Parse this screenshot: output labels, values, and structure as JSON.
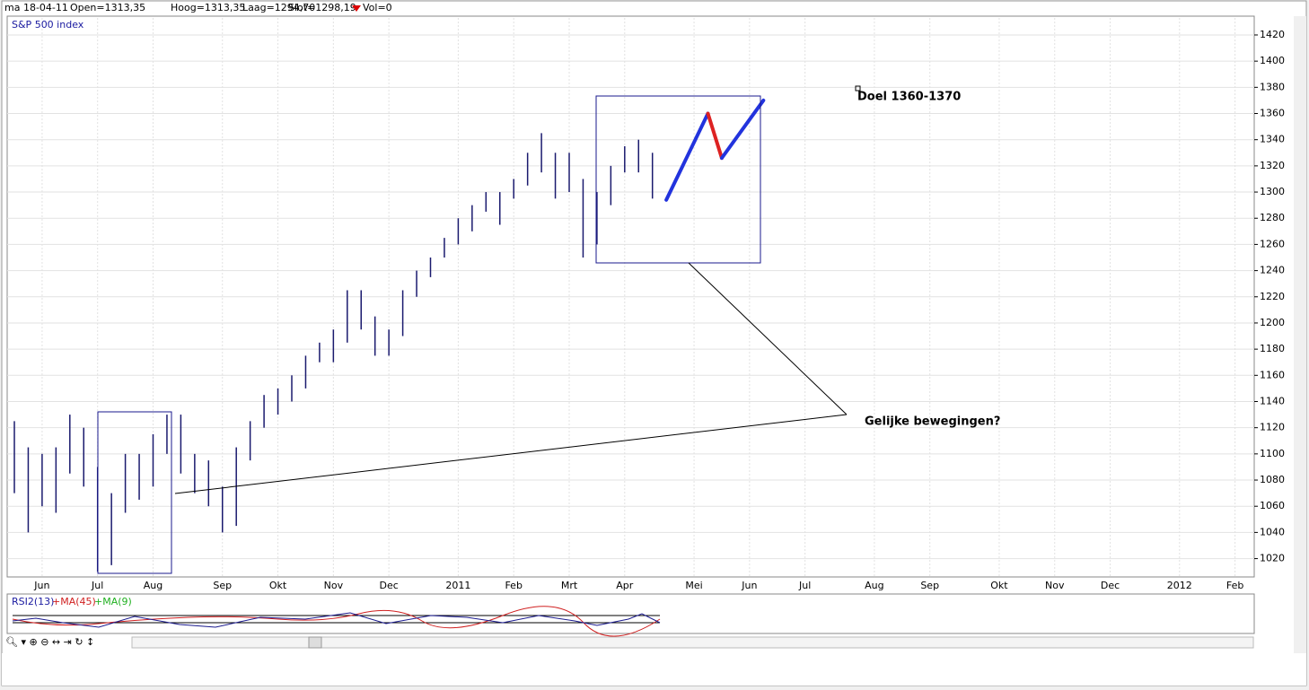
{
  "header": {
    "date": "ma 18-04-11",
    "open": "Open=1313,35",
    "high": "Hoog=1313,35",
    "low": "Laag=1294,70",
    "close": "Slot=1298,19",
    "volume": "Vol=0"
  },
  "chart_data": {
    "type": "ohlc",
    "title": "S&P 500 index",
    "categories": [
      null,
      null,
      "Jun",
      null,
      null,
      null,
      "Jul",
      null,
      null,
      null,
      "Aug",
      null,
      null,
      null,
      null,
      "Sep",
      null,
      null,
      null,
      "Okt",
      null,
      null,
      null,
      "Nov",
      null,
      null,
      null,
      "Dec",
      null,
      null,
      null,
      null,
      "2011",
      null,
      null,
      null,
      "Feb",
      null,
      null,
      null,
      "Mrt",
      null,
      null,
      null,
      "Apr",
      null,
      null,
      null,
      null,
      "Mei",
      null,
      null,
      null,
      "Jun",
      null,
      null,
      null,
      "Jul",
      null,
      null,
      null,
      null,
      "Aug",
      null,
      null,
      null,
      "Sep",
      null,
      null,
      null,
      null,
      "Okt",
      null,
      null,
      null,
      "Nov",
      null,
      null,
      null,
      "Dec",
      null,
      null,
      null,
      null,
      "2012",
      null,
      null,
      null,
      "Feb",
      null
    ],
    "high": [
      1125,
      1105,
      1100,
      1105,
      1130,
      1120,
      1090,
      1070,
      1100,
      1100,
      1115,
      1130,
      1130,
      1100,
      1095,
      1075,
      1105,
      1125,
      1145,
      1150,
      1160,
      1175,
      1185,
      1195,
      1225,
      1225,
      1205,
      1195,
      1225,
      1240,
      1250,
      1265,
      1280,
      1290,
      1300,
      1300,
      1310,
      1330,
      1345,
      1330,
      1330,
      1310,
      1300,
      1320,
      1335,
      1340,
      1330,
      null,
      null,
      null,
      null,
      null,
      null,
      null,
      null,
      null,
      null,
      null,
      null,
      null,
      null,
      null,
      null,
      null,
      null,
      null,
      null,
      null,
      null,
      null,
      null,
      null,
      null,
      null,
      null,
      null,
      null,
      null,
      null,
      null,
      null,
      null,
      null,
      null,
      null,
      null,
      null,
      null,
      null,
      null
    ],
    "low": [
      1070,
      1040,
      1060,
      1055,
      1085,
      1075,
      1010,
      1015,
      1055,
      1065,
      1075,
      1100,
      1085,
      1070,
      1060,
      1040,
      1045,
      1095,
      1120,
      1130,
      1140,
      1150,
      1170,
      1170,
      1185,
      1195,
      1175,
      1175,
      1190,
      1220,
      1235,
      1250,
      1260,
      1270,
      1285,
      1275,
      1295,
      1305,
      1315,
      1295,
      1300,
      1250,
      1260,
      1290,
      1315,
      1315,
      1295,
      null,
      null,
      null,
      null,
      null,
      null,
      null,
      null,
      null,
      null,
      null,
      null,
      null,
      null,
      null,
      null,
      null,
      null,
      null,
      null,
      null,
      null,
      null,
      null,
      null,
      null,
      null,
      null,
      null,
      null,
      null,
      null,
      null,
      null,
      null,
      null,
      null,
      null,
      null,
      null,
      null,
      null,
      null
    ],
    "bar_color": "#1a1a6e",
    "projection": {
      "values": [
        null,
        null,
        null,
        null,
        null,
        null,
        null,
        null,
        null,
        null,
        null,
        null,
        null,
        null,
        null,
        null,
        null,
        null,
        null,
        null,
        null,
        null,
        null,
        null,
        null,
        null,
        null,
        null,
        null,
        null,
        null,
        null,
        null,
        null,
        null,
        null,
        null,
        null,
        null,
        null,
        null,
        null,
        null,
        null,
        null,
        null,
        null,
        1294,
        null,
        null,
        1360,
        1326,
        null,
        null,
        1370,
        null,
        null,
        null,
        null,
        null,
        null,
        null,
        null,
        null,
        null,
        null,
        null,
        null,
        null,
        null,
        null,
        null,
        null,
        null,
        null,
        null,
        null,
        null,
        null,
        null,
        null,
        null,
        null,
        null,
        null,
        null,
        null,
        null,
        null,
        null
      ],
      "segment_colors": [
        "#2233dd",
        "#dd2222",
        "#2233dd"
      ]
    },
    "ylim": [
      1006,
      1433
    ],
    "yticks": [
      1020,
      1040,
      1060,
      1080,
      1100,
      1120,
      1140,
      1160,
      1180,
      1200,
      1220,
      1240,
      1260,
      1280,
      1300,
      1320,
      1340,
      1360,
      1380,
      1400,
      1420
    ],
    "grid": true,
    "annotations": [
      "Doel 1360-1370",
      "Gelijke bewegingen?"
    ]
  },
  "indicator": {
    "name": "RSI2(13)",
    "ma_long": "+MA(45)",
    "ma_short": "+MA(9)"
  }
}
